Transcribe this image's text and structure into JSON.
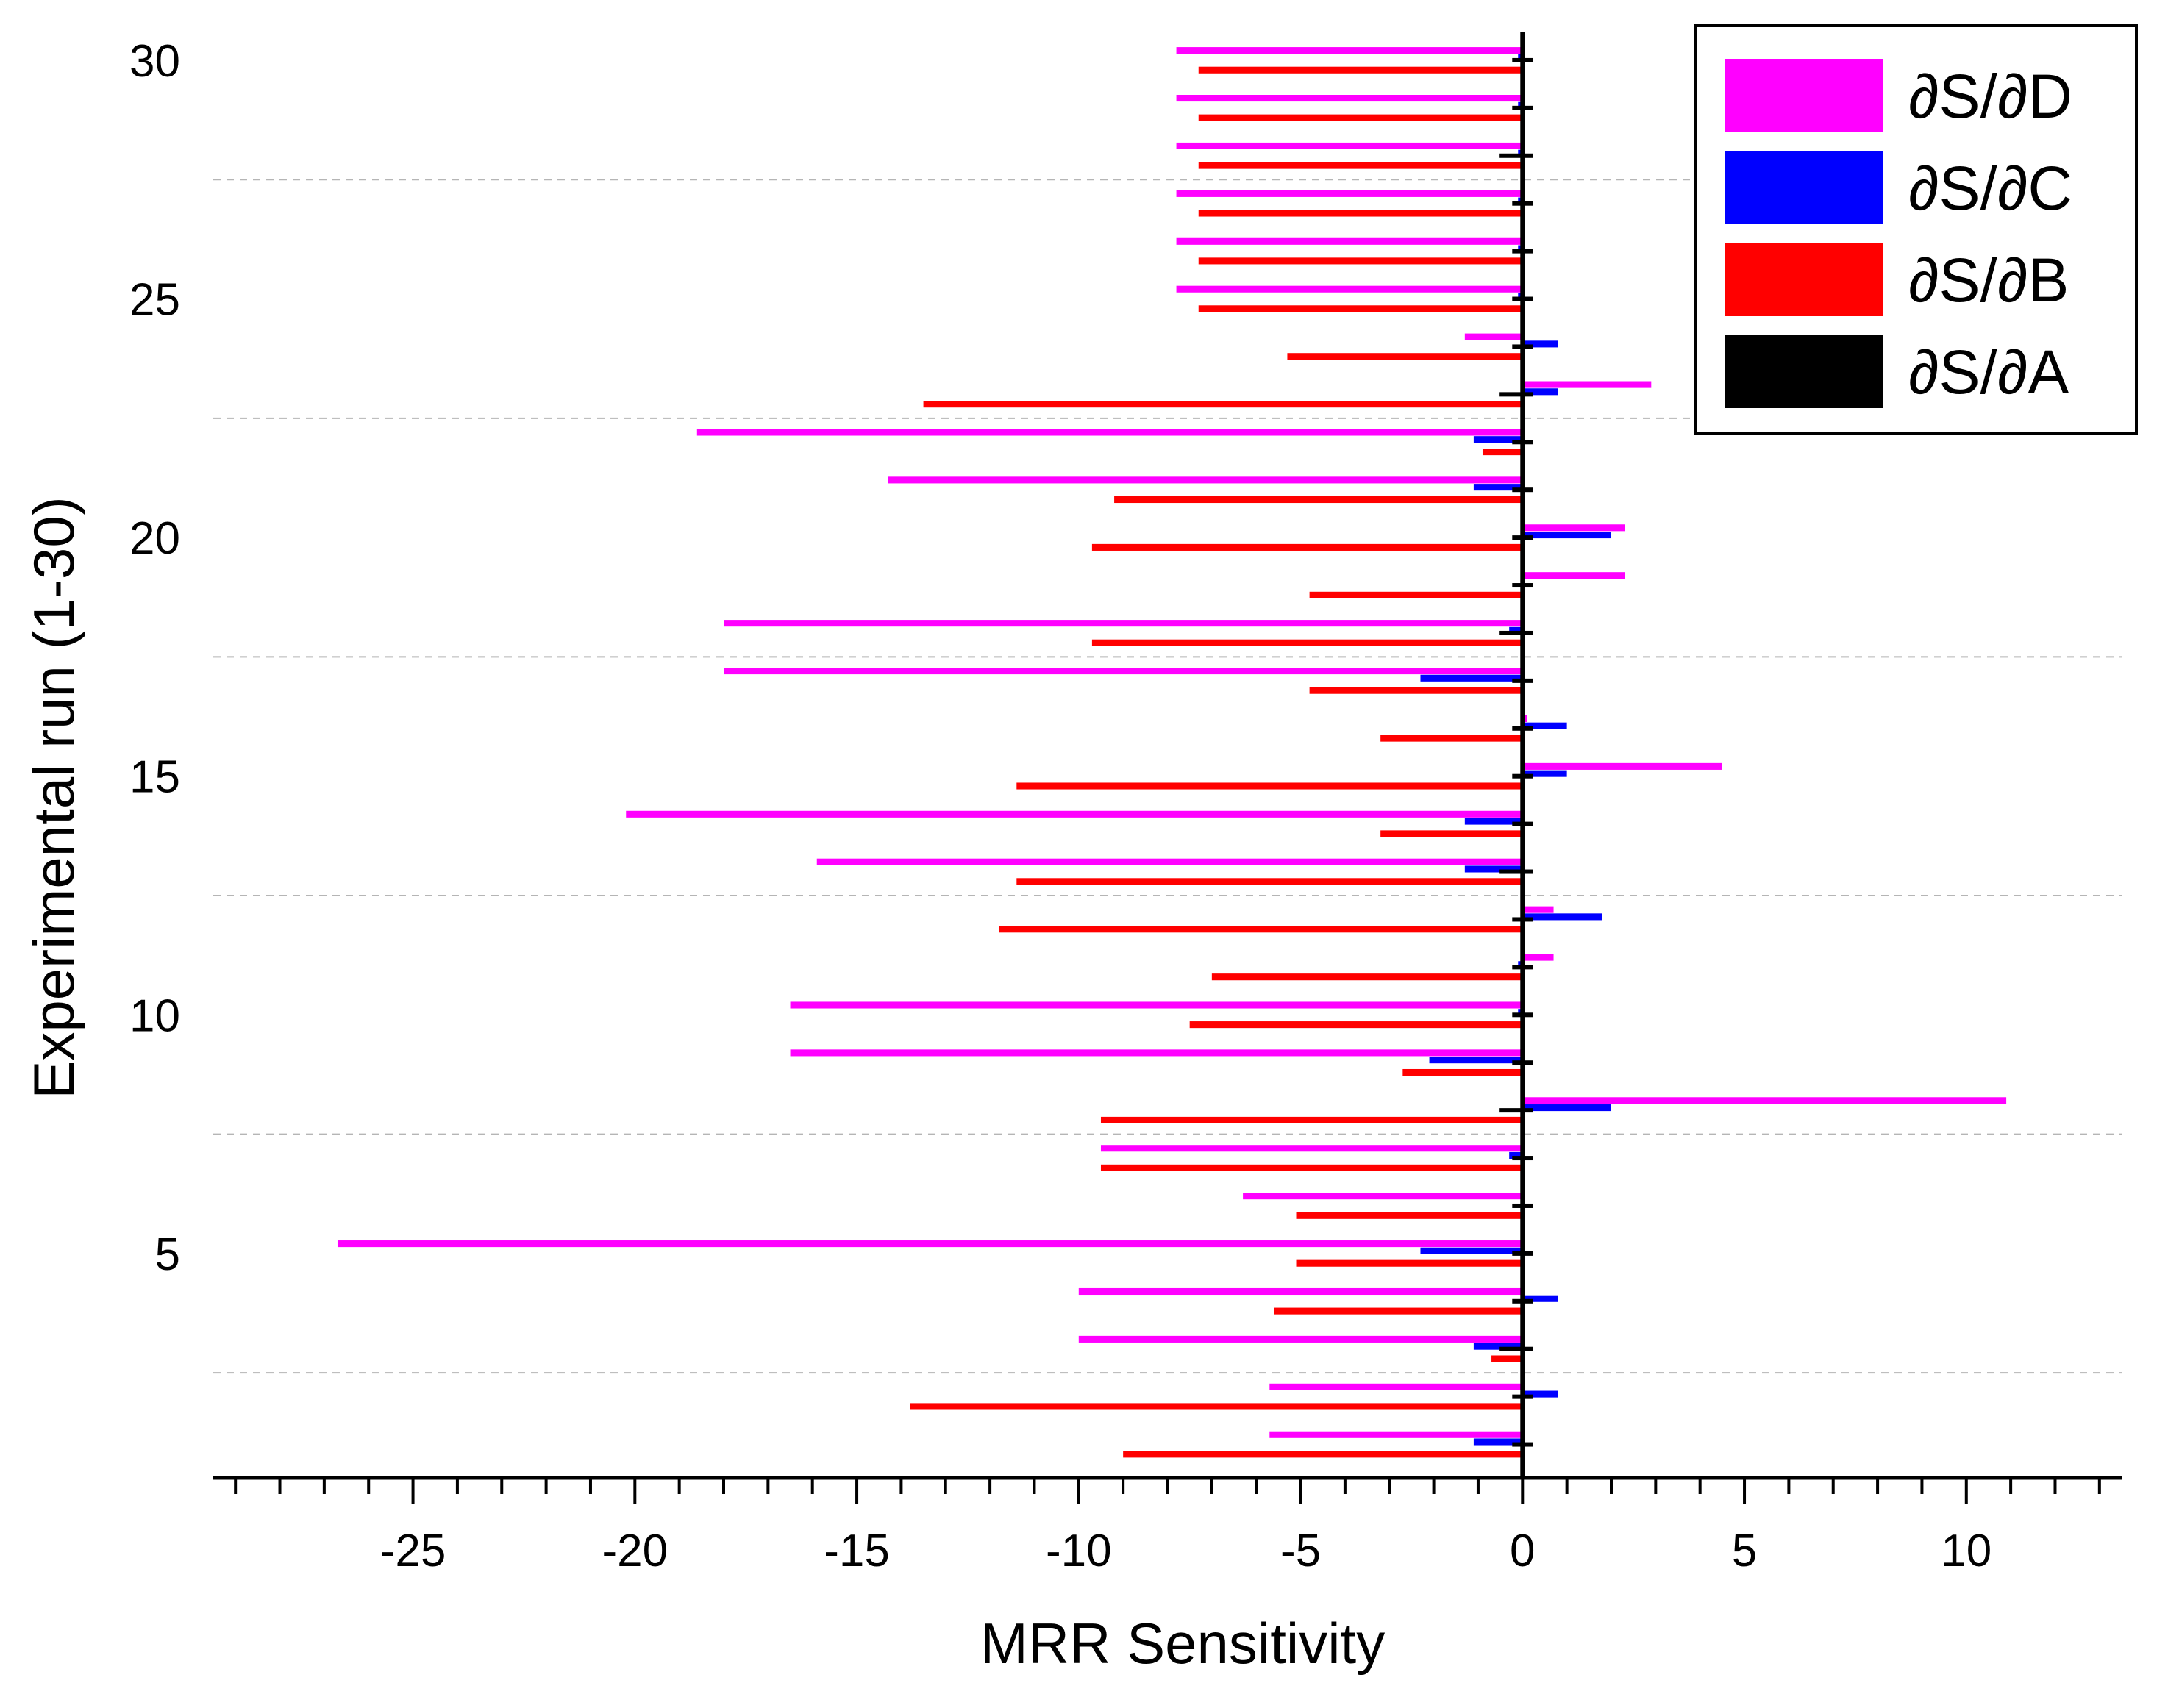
{
  "chart_data": {
    "type": "bar",
    "orientation": "horizontal",
    "xlabel": "MRR Sensitivity",
    "ylabel": "Experimental run (1-30)",
    "xlim": [
      -29.5,
      13.5
    ],
    "ylim": [
      0.3,
      30.8
    ],
    "x_ticks": [
      -25,
      -20,
      -15,
      -10,
      -5,
      0,
      5,
      10
    ],
    "x_tick_labels": [
      "-25",
      "-20",
      "-15",
      "-10",
      "-5",
      "0",
      "5",
      "10"
    ],
    "y_ticks": [
      5,
      10,
      15,
      20,
      25,
      30
    ],
    "y_tick_labels": [
      "5",
      "10",
      "15",
      "20",
      "25",
      "30"
    ],
    "grid": "horizontal dashed",
    "legend_position": "top-right",
    "legend": [
      {
        "key": "D",
        "label": "∂S/∂D",
        "color": "#ff00ff"
      },
      {
        "key": "C",
        "label": "∂S/∂C",
        "color": "#0000ff"
      },
      {
        "key": "B",
        "label": "∂S/∂B",
        "color": "#ff0000"
      },
      {
        "key": "A",
        "label": "∂S/∂A",
        "color": "#000000"
      }
    ],
    "categories": [
      1,
      2,
      3,
      4,
      5,
      6,
      7,
      8,
      9,
      10,
      11,
      12,
      13,
      14,
      15,
      16,
      17,
      18,
      19,
      20,
      21,
      22,
      23,
      24,
      25,
      26,
      27,
      28,
      29,
      30
    ],
    "series": [
      {
        "name": "∂S/∂D",
        "color": "#ff00ff",
        "values": [
          -5.7,
          -5.7,
          -10.0,
          -10.0,
          -26.7,
          -6.3,
          -9.5,
          10.9,
          -16.5,
          -16.5,
          0.7,
          0.7,
          -15.9,
          -20.2,
          4.5,
          0.1,
          -18.0,
          -18.0,
          2.3,
          2.3,
          -14.3,
          -18.6,
          2.9,
          -1.3,
          -7.8,
          -7.8,
          -7.8,
          -7.8,
          -7.8,
          -7.8
        ]
      },
      {
        "name": "∂S/∂C",
        "color": "#0000ff",
        "values": [
          -1.1,
          0.8,
          -1.1,
          0.8,
          -2.3,
          0.0,
          -0.3,
          2.0,
          -2.1,
          -0.1,
          -0.1,
          1.8,
          -1.3,
          -1.3,
          1.0,
          1.0,
          -2.3,
          -0.3,
          0.0,
          2.0,
          -1.1,
          -1.1,
          0.8,
          0.8,
          -0.1,
          -0.1,
          -0.1,
          -0.1,
          -0.1,
          -0.1
        ]
      },
      {
        "name": "∂S/∂B",
        "color": "#ff0000",
        "values": [
          -9.0,
          -13.8,
          -0.7,
          -5.6,
          -5.1,
          -5.1,
          -9.5,
          -9.5,
          -2.7,
          -7.5,
          -7.0,
          -11.8,
          -11.4,
          -3.2,
          -11.4,
          -3.2,
          -4.8,
          -9.7,
          -4.8,
          -9.7,
          -9.2,
          -0.9,
          -13.5,
          -5.3,
          -7.3,
          -7.3,
          -7.3,
          -7.3,
          -7.3,
          -7.3
        ]
      },
      {
        "name": "∂S/∂A",
        "color": "#000000",
        "values": [
          0.0,
          0.0,
          -0.3,
          0.0,
          0.0,
          0.0,
          0.0,
          -0.3,
          0.0,
          0.0,
          0.0,
          0.0,
          -0.3,
          0.0,
          0.0,
          0.0,
          0.0,
          -0.3,
          0.0,
          0.0,
          0.0,
          0.0,
          -0.3,
          0.0,
          0.0,
          0.0,
          0.0,
          -0.3,
          0.0,
          0.0
        ]
      }
    ]
  }
}
